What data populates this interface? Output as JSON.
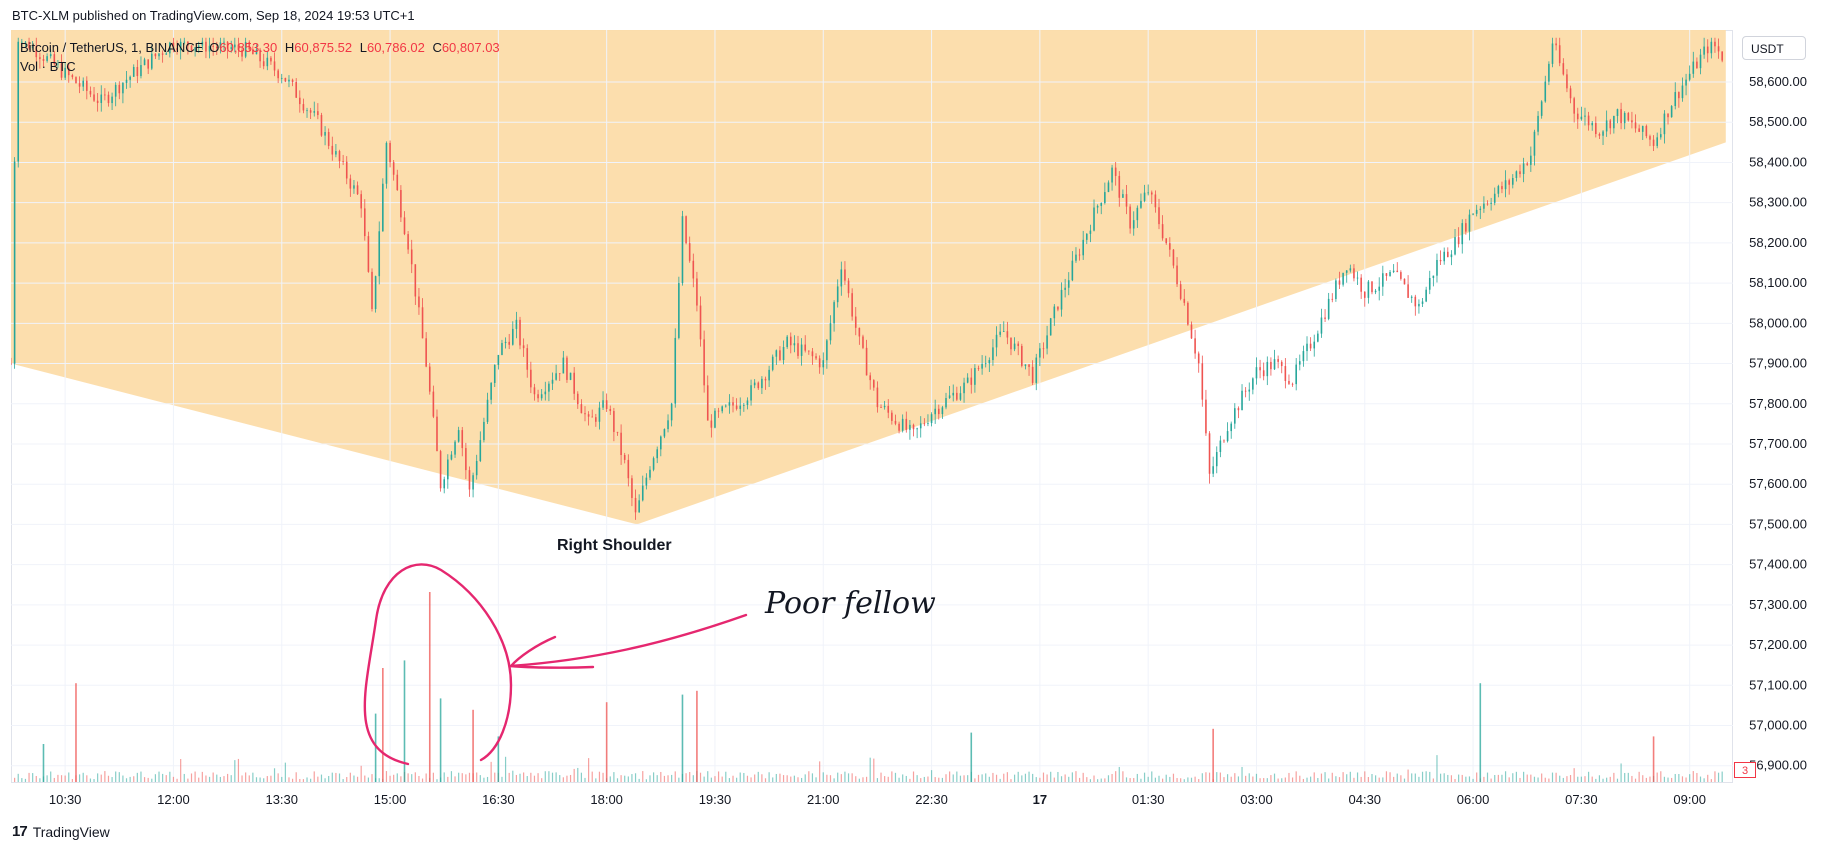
{
  "header": {
    "published": "BTC-XLM published on TradingView.com, Sep 18, 2024 19:53 UTC+1"
  },
  "legend": {
    "symbol": "Bitcoin / TetherUS, 1, BINANCE",
    "open_key": "O",
    "open_val": "60,853.30",
    "high_key": "H",
    "high_val": "60,875.52",
    "low_key": "L",
    "low_val": "60,786.02",
    "close_key": "C",
    "close_val": "60,807.03",
    "volume": "Vol · BTC"
  },
  "currency": "USDT",
  "volume_badge": "3",
  "footer": {
    "brand": "TradingView",
    "mark": "17"
  },
  "annotations": {
    "label": "Right Shoulder",
    "note": "Poor fellow"
  },
  "colors": {
    "up": "#26a69a",
    "down": "#ef5350",
    "zone": "#fcdca9",
    "marker": "#e5276f"
  },
  "chart_data": {
    "type": "candlestick",
    "symbol": "BTC/USDT",
    "timeframe": "1",
    "exchange": "BINANCE",
    "y_ticks": [
      58600,
      58500,
      58400,
      58300,
      58200,
      58100,
      58000,
      57900,
      57800,
      57700,
      57600,
      57500,
      57400,
      57300,
      57200,
      57100,
      57000,
      56900
    ],
    "y_tick_labels": [
      "58,600.00",
      "58,500.00",
      "58,400.00",
      "58,300.00",
      "58,200.00",
      "58,100.00",
      "58,000.00",
      "57,900.00",
      "57,800.00",
      "57,700.00",
      "57,600.00",
      "57,500.00",
      "57,400.00",
      "57,300.00",
      "57,200.00",
      "57,100.00",
      "57,000.00",
      "56,900.00"
    ],
    "ylim": [
      56880,
      58700
    ],
    "x_ticks": [
      "10:30",
      "12:00",
      "13:30",
      "15:00",
      "16:30",
      "18:00",
      "19:30",
      "21:00",
      "22:30",
      "17",
      "01:30",
      "03:00",
      "04:30",
      "06:00",
      "07:30",
      "09:00"
    ],
    "x_tick_hours": [
      10.5,
      12,
      13.5,
      15,
      16.5,
      18,
      19.5,
      21,
      22.5,
      24,
      25.5,
      27,
      28.5,
      30,
      31.5,
      33
    ],
    "price_path": [
      {
        "t": 9.75,
        "p": 57900
      },
      {
        "t": 9.83,
        "p": 58720
      },
      {
        "t": 10.5,
        "p": 58620
      },
      {
        "t": 11.0,
        "p": 58550
      },
      {
        "t": 11.3,
        "p": 58600
      },
      {
        "t": 12.0,
        "p": 58700
      },
      {
        "t": 13.0,
        "p": 58680
      },
      {
        "t": 13.5,
        "p": 58620
      },
      {
        "t": 14.0,
        "p": 58500
      },
      {
        "t": 14.6,
        "p": 58300
      },
      {
        "t": 14.75,
        "p": 58020
      },
      {
        "t": 14.95,
        "p": 58450
      },
      {
        "t": 15.25,
        "p": 58200
      },
      {
        "t": 15.5,
        "p": 57900
      },
      {
        "t": 15.7,
        "p": 57600
      },
      {
        "t": 15.95,
        "p": 57750
      },
      {
        "t": 16.1,
        "p": 57580
      },
      {
        "t": 16.5,
        "p": 57930
      },
      {
        "t": 16.75,
        "p": 57990
      },
      {
        "t": 17.0,
        "p": 57820
      },
      {
        "t": 17.4,
        "p": 57900
      },
      {
        "t": 17.75,
        "p": 57750
      },
      {
        "t": 18.0,
        "p": 57800
      },
      {
        "t": 18.25,
        "p": 57650
      },
      {
        "t": 18.4,
        "p": 57520
      },
      {
        "t": 18.6,
        "p": 57650
      },
      {
        "t": 18.9,
        "p": 57800
      },
      {
        "t": 19.05,
        "p": 58250
      },
      {
        "t": 19.25,
        "p": 58050
      },
      {
        "t": 19.4,
        "p": 57750
      },
      {
        "t": 20.0,
        "p": 57830
      },
      {
        "t": 20.5,
        "p": 57950
      },
      {
        "t": 21.0,
        "p": 57900
      },
      {
        "t": 21.25,
        "p": 58150
      },
      {
        "t": 21.5,
        "p": 57950
      },
      {
        "t": 21.75,
        "p": 57800
      },
      {
        "t": 22.25,
        "p": 57720
      },
      {
        "t": 22.5,
        "p": 57780
      },
      {
        "t": 23.0,
        "p": 57850
      },
      {
        "t": 23.5,
        "p": 57980
      },
      {
        "t": 23.9,
        "p": 57870
      },
      {
        "t": 24.25,
        "p": 58050
      },
      {
        "t": 24.7,
        "p": 58250
      },
      {
        "t": 25.0,
        "p": 58380
      },
      {
        "t": 25.25,
        "p": 58250
      },
      {
        "t": 25.5,
        "p": 58330
      },
      {
        "t": 25.75,
        "p": 58200
      },
      {
        "t": 26.0,
        "p": 58050
      },
      {
        "t": 26.2,
        "p": 57900
      },
      {
        "t": 26.35,
        "p": 57620
      },
      {
        "t": 26.6,
        "p": 57750
      },
      {
        "t": 27.0,
        "p": 57880
      },
      {
        "t": 27.25,
        "p": 57900
      },
      {
        "t": 27.5,
        "p": 57860
      },
      {
        "t": 27.75,
        "p": 57950
      },
      {
        "t": 28.0,
        "p": 58050
      },
      {
        "t": 28.25,
        "p": 58150
      },
      {
        "t": 28.5,
        "p": 58080
      },
      {
        "t": 28.9,
        "p": 58120
      },
      {
        "t": 29.25,
        "p": 58040
      },
      {
        "t": 29.5,
        "p": 58150
      },
      {
        "t": 29.75,
        "p": 58200
      },
      {
        "t": 30.0,
        "p": 58280
      },
      {
        "t": 30.5,
        "p": 58350
      },
      {
        "t": 30.8,
        "p": 58420
      },
      {
        "t": 31.0,
        "p": 58600
      },
      {
        "t": 31.1,
        "p": 58700
      },
      {
        "t": 31.4,
        "p": 58530
      },
      {
        "t": 31.75,
        "p": 58480
      },
      {
        "t": 32.0,
        "p": 58520
      },
      {
        "t": 32.5,
        "p": 58450
      },
      {
        "t": 32.75,
        "p": 58550
      },
      {
        "t": 33.0,
        "p": 58620
      },
      {
        "t": 33.3,
        "p": 58700
      },
      {
        "t": 33.5,
        "p": 58650
      }
    ],
    "volume_spikes": [
      {
        "t": 10.2,
        "v": 100
      },
      {
        "t": 10.65,
        "v": 260
      },
      {
        "t": 14.8,
        "v": 180
      },
      {
        "t": 14.9,
        "v": 300
      },
      {
        "t": 15.2,
        "v": 320
      },
      {
        "t": 15.55,
        "v": 500
      },
      {
        "t": 15.7,
        "v": 220
      },
      {
        "t": 16.15,
        "v": 190
      },
      {
        "t": 16.5,
        "v": 120
      },
      {
        "t": 18.0,
        "v": 210
      },
      {
        "t": 19.05,
        "v": 230
      },
      {
        "t": 19.25,
        "v": 240
      },
      {
        "t": 23.05,
        "v": 130
      },
      {
        "t": 26.4,
        "v": 140
      },
      {
        "t": 30.1,
        "v": 260
      },
      {
        "t": 32.5,
        "v": 120
      }
    ],
    "zone": {
      "left_start": {
        "t": 9.75,
        "p": 57900
      },
      "bottom": {
        "t": 18.42,
        "p": 57500
      },
      "right_end": {
        "t": 33.5,
        "p": 58450
      }
    }
  }
}
